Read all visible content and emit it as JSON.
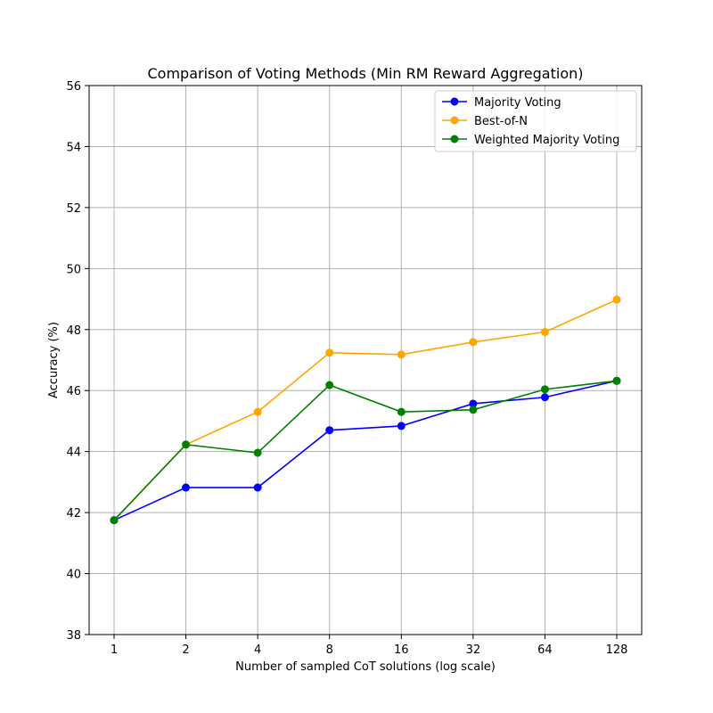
{
  "chart_data": {
    "type": "line",
    "title": "Comparison of Voting Methods (Min RM Reward Aggregation)",
    "xlabel": "Number of sampled CoT solutions (log scale)",
    "ylabel": "Accuracy (%)",
    "x": [
      1,
      2,
      4,
      8,
      16,
      32,
      64,
      128
    ],
    "x_tick_labels": [
      "1",
      "2",
      "4",
      "8",
      "16",
      "32",
      "64",
      "128"
    ],
    "x_scale": "log2",
    "ylim": [
      38,
      56
    ],
    "y_ticks": [
      38,
      40,
      42,
      44,
      46,
      48,
      50,
      52,
      54,
      56
    ],
    "grid": true,
    "legend_position": "top-right",
    "series": [
      {
        "name": "Majority Voting",
        "color": "#0000ff",
        "marker": "circle",
        "values": [
          41.75,
          42.82,
          42.82,
          44.7,
          44.84,
          45.57,
          45.78,
          46.32
        ]
      },
      {
        "name": "Best-of-N",
        "color": "#ffa500",
        "marker": "circle",
        "values": [
          41.75,
          44.23,
          45.3,
          47.24,
          47.18,
          47.59,
          47.92,
          48.98
        ]
      },
      {
        "name": "Weighted Majority Voting",
        "color": "#008000",
        "marker": "circle",
        "values": [
          41.75,
          44.23,
          43.96,
          46.18,
          45.3,
          45.37,
          46.04,
          46.32
        ]
      }
    ]
  }
}
